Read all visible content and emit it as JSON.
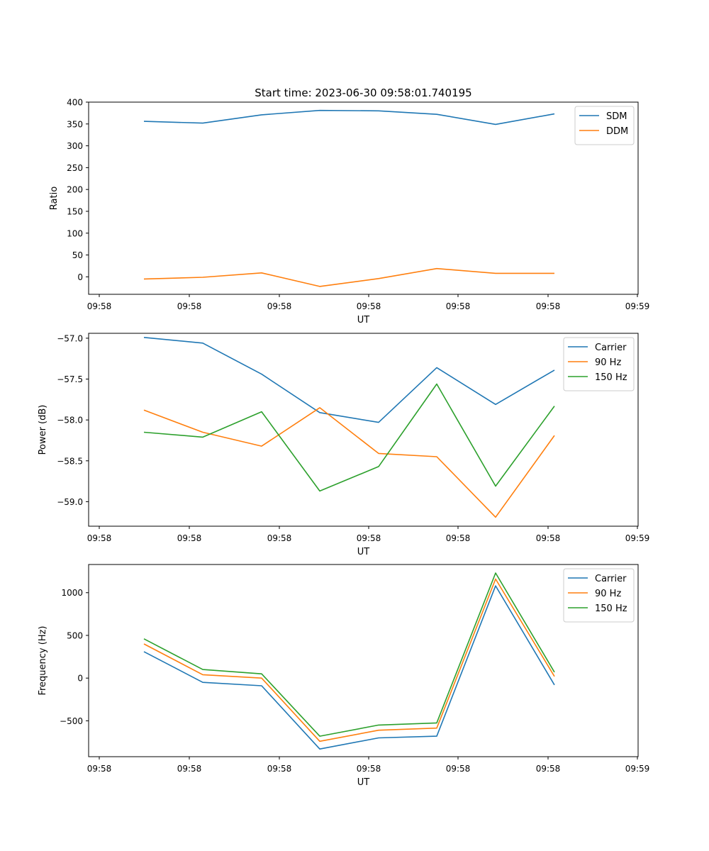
{
  "title": "Start time: 2023-06-30 09:58:01.740195",
  "chart_data": [
    {
      "type": "line",
      "title": "",
      "xlabel": "UT",
      "ylabel": "Ratio",
      "x_tick_labels": [
        "09:58",
        "09:58",
        "09:58",
        "09:58",
        "09:58",
        "09:58",
        "09:59"
      ],
      "yticks": [
        0,
        50,
        100,
        150,
        200,
        250,
        300,
        350,
        400
      ],
      "ylim": [
        -40,
        400
      ],
      "grid": false,
      "legend_position": "top-right",
      "series": [
        {
          "name": "SDM",
          "color": "#1f77b4",
          "values": [
            356,
            352,
            371,
            381,
            380,
            372,
            349,
            373
          ]
        },
        {
          "name": "DDM",
          "color": "#ff7f0e",
          "values": [
            -5,
            -1,
            9,
            -22,
            -4,
            19,
            8,
            8
          ]
        }
      ]
    },
    {
      "type": "line",
      "title": "",
      "xlabel": "UT",
      "ylabel": "Power (dB)",
      "x_tick_labels": [
        "09:58",
        "09:58",
        "09:58",
        "09:58",
        "09:58",
        "09:58",
        "09:59"
      ],
      "yticks": [
        -57.0,
        -57.5,
        -58.0,
        -58.5,
        -59.0
      ],
      "ytick_labels": [
        "−57.0",
        "−57.5",
        "−58.0",
        "−58.5",
        "−59.0"
      ],
      "ylim": [
        -59.3,
        -56.94
      ],
      "grid": false,
      "legend_position": "top-right",
      "series": [
        {
          "name": "Carrier",
          "color": "#1f77b4",
          "values": [
            -56.99,
            -57.06,
            -57.44,
            -57.91,
            -58.03,
            -57.36,
            -57.81,
            -57.39
          ]
        },
        {
          "name": "90 Hz",
          "color": "#ff7f0e",
          "values": [
            -57.88,
            -58.15,
            -58.32,
            -57.85,
            -58.41,
            -58.45,
            -59.19,
            -58.19
          ]
        },
        {
          "name": "150 Hz",
          "color": "#2ca02c",
          "values": [
            -58.15,
            -58.21,
            -57.9,
            -58.87,
            -58.57,
            -57.56,
            -58.81,
            -57.83
          ]
        }
      ]
    },
    {
      "type": "line",
      "title": "",
      "xlabel": "UT",
      "ylabel": "Frequency (Hz)",
      "x_tick_labels": [
        "09:58",
        "09:58",
        "09:58",
        "09:58",
        "09:58",
        "09:58",
        "09:59"
      ],
      "yticks": [
        1000,
        500,
        0,
        -500
      ],
      "ytick_labels": [
        "1000",
        "500",
        "0",
        "−500"
      ],
      "ylim": [
        -920,
        1330
      ],
      "grid": false,
      "legend_position": "top-right",
      "series": [
        {
          "name": "Carrier",
          "color": "#1f77b4",
          "values": [
            310,
            -50,
            -90,
            -830,
            -700,
            -680,
            1080,
            -80
          ]
        },
        {
          "name": "90 Hz",
          "color": "#ff7f0e",
          "values": [
            400,
            40,
            0,
            -740,
            -610,
            -585,
            1160,
            20
          ]
        },
        {
          "name": "150 Hz",
          "color": "#2ca02c",
          "values": [
            460,
            100,
            50,
            -680,
            -550,
            -525,
            1230,
            70
          ]
        }
      ]
    }
  ]
}
